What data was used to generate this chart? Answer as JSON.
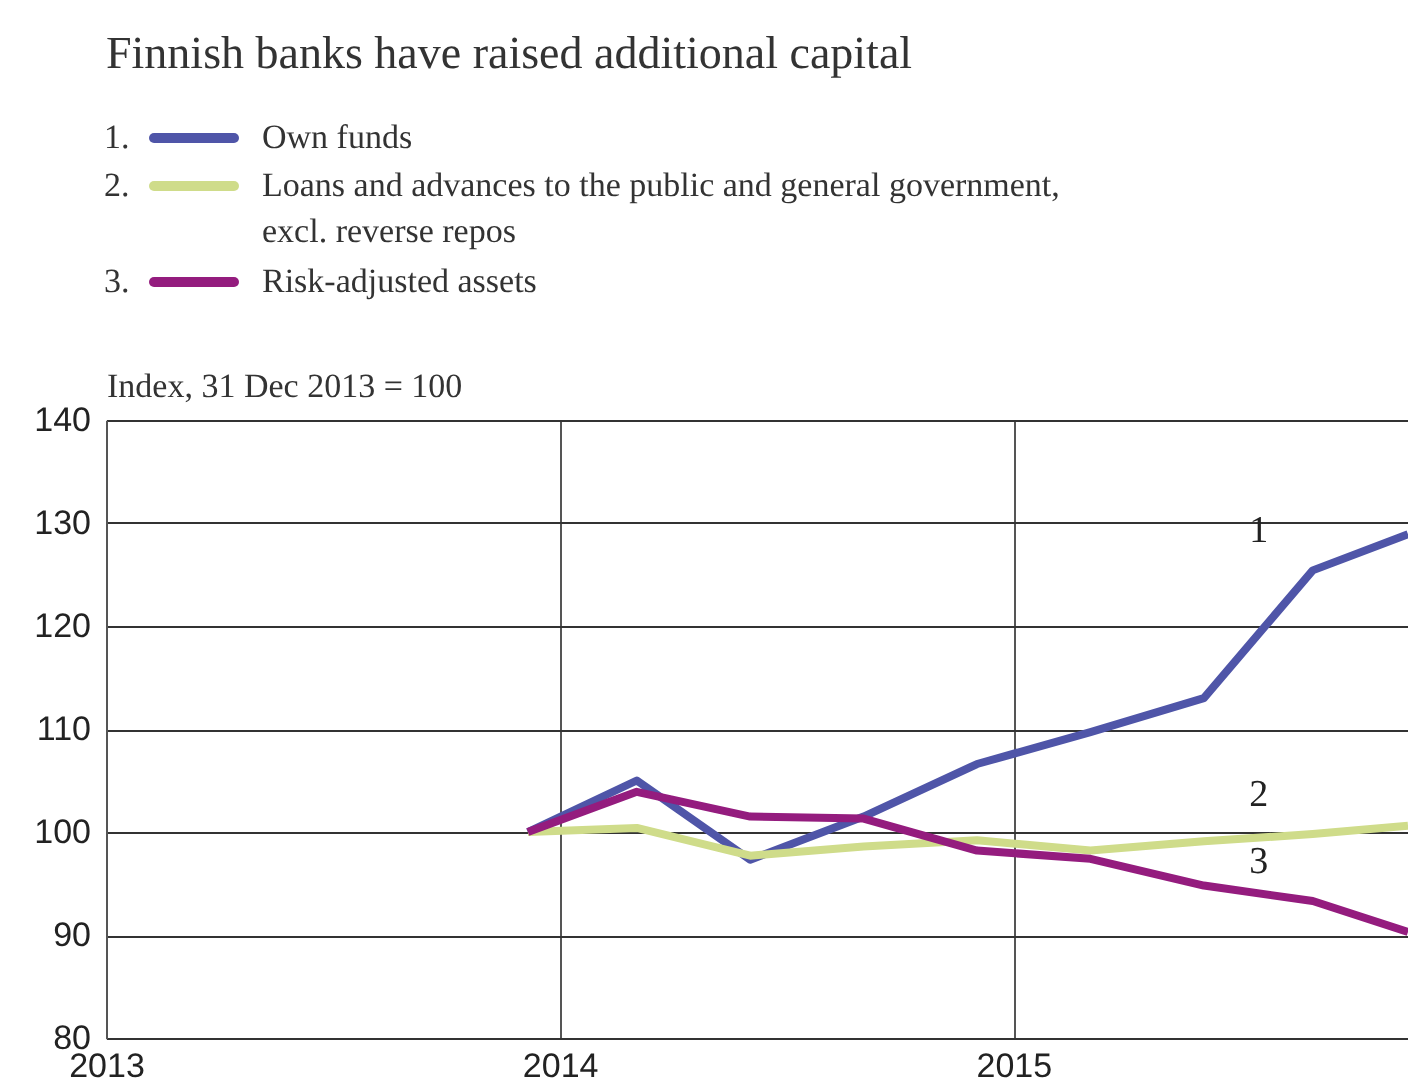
{
  "chart_data": {
    "type": "line",
    "title": "Finnish banks have raised additional capital",
    "ylabel": "Index, 31 Dec 2013 = 100",
    "x": [
      2013.93,
      2014.17,
      2014.42,
      2014.67,
      2014.92,
      2015.17,
      2015.42,
      2015.66,
      2015.87
    ],
    "series": [
      {
        "name": "Own funds",
        "color": "#4f55a8",
        "values": [
          100,
          105,
          97.3,
          101.5,
          106.6,
          109.7,
          113,
          125.4,
          128.9
        ]
      },
      {
        "name": "Loans and advances to the public and general government,\nexcl. reverse repos",
        "color": "#cfdc8a",
        "values": [
          100,
          100.4,
          97.7,
          98.6,
          99.2,
          98.2,
          99.1,
          99.8,
          100.6
        ]
      },
      {
        "name": "Risk-adjusted assets",
        "color": "#941c7e",
        "values": [
          100,
          103.9,
          101.5,
          101.3,
          98.2,
          97.4,
          94.8,
          93.3,
          90.3
        ]
      }
    ],
    "annotations": [
      "1.",
      "2.",
      "3.",
      "1",
      "2",
      "3"
    ],
    "xlim": [
      2013,
      2015.87
    ],
    "xticks": [
      2013,
      2014,
      2015
    ],
    "ylim": [
      80,
      140
    ],
    "yticks": [
      80,
      90,
      100,
      110,
      120,
      130,
      140
    ],
    "grid": true,
    "legend": "top left",
    "marker": "none",
    "line_style": "solid"
  }
}
